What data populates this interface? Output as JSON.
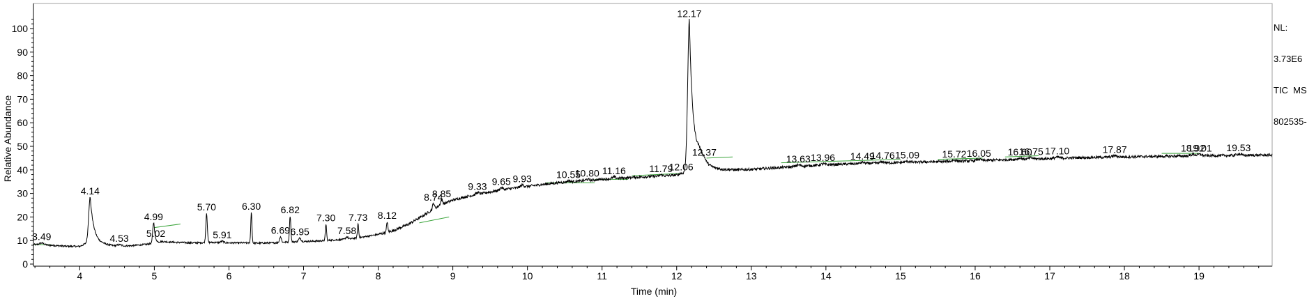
{
  "chart_data": {
    "type": "line",
    "title": "",
    "xlabel": "Time (min)",
    "ylabel": "Relative Abundance",
    "xlim": [
      3.38,
      19.98
    ],
    "ylim": [
      0,
      105
    ],
    "x_ticks": [
      4,
      5,
      6,
      7,
      8,
      9,
      10,
      11,
      12,
      13,
      14,
      15,
      16,
      17,
      18,
      19
    ],
    "y_ticks": [
      0,
      10,
      20,
      30,
      40,
      50,
      60,
      70,
      80,
      90,
      100
    ],
    "x_minor_tick_step": 0.2,
    "y_minor_tick_step": 2,
    "grid": false,
    "line_color": "#000000",
    "baseline_color": "#3aa43a",
    "header_lines": [
      "NL:",
      "3.73E6",
      "TIC  MS",
      "802535-"
    ],
    "trace_points": [
      [
        3.38,
        8.3
      ],
      [
        3.6,
        8.0
      ],
      [
        3.8,
        7.6
      ],
      [
        4.0,
        7.5
      ],
      [
        4.1,
        9
      ],
      [
        4.3,
        8.5
      ],
      [
        4.5,
        7.6
      ],
      [
        4.7,
        7.8
      ],
      [
        4.9,
        8.4
      ],
      [
        5.1,
        9.6
      ],
      [
        5.3,
        9.2
      ],
      [
        5.5,
        9.0
      ],
      [
        5.8,
        9.2
      ],
      [
        6.0,
        9.0
      ],
      [
        6.2,
        9.0
      ],
      [
        6.4,
        8.9
      ],
      [
        6.6,
        9.0
      ],
      [
        6.8,
        9.4
      ],
      [
        7.0,
        9.6
      ],
      [
        7.2,
        9.8
      ],
      [
        7.4,
        10.2
      ],
      [
        7.6,
        10.6
      ],
      [
        7.8,
        11.5
      ],
      [
        8.0,
        12.6
      ],
      [
        8.2,
        14.2
      ],
      [
        8.4,
        16.8
      ],
      [
        8.6,
        20.5
      ],
      [
        8.8,
        24.5
      ],
      [
        9.0,
        27.2
      ],
      [
        9.2,
        28.8
      ],
      [
        9.4,
        30.0
      ],
      [
        9.6,
        31.2
      ],
      [
        9.8,
        32.2
      ],
      [
        10.0,
        33.0
      ],
      [
        10.2,
        33.8
      ],
      [
        10.4,
        34.5
      ],
      [
        10.6,
        35.0
      ],
      [
        10.8,
        35.5
      ],
      [
        11.0,
        36.0
      ],
      [
        11.2,
        36.4
      ],
      [
        11.4,
        36.8
      ],
      [
        11.6,
        37.1
      ],
      [
        11.8,
        37.4
      ],
      [
        12.0,
        37.8
      ],
      [
        12.08,
        38.1
      ],
      [
        12.3,
        47.0
      ],
      [
        12.4,
        42.5
      ],
      [
        12.5,
        41.0
      ],
      [
        12.6,
        40.3
      ],
      [
        12.8,
        40.0
      ],
      [
        13.0,
        40.2
      ],
      [
        13.4,
        41.0
      ],
      [
        13.8,
        41.8
      ],
      [
        14.2,
        42.4
      ],
      [
        14.6,
        42.8
      ],
      [
        15.0,
        43.1
      ],
      [
        15.4,
        43.4
      ],
      [
        15.8,
        43.7
      ],
      [
        16.2,
        44.1
      ],
      [
        16.6,
        44.5
      ],
      [
        17.0,
        44.8
      ],
      [
        17.4,
        45.2
      ],
      [
        17.8,
        45.4
      ],
      [
        18.2,
        45.6
      ],
      [
        18.6,
        45.8
      ],
      [
        19.0,
        46.0
      ],
      [
        19.4,
        46.1
      ],
      [
        19.98,
        46.3
      ]
    ],
    "peaks": [
      {
        "rt": 3.49,
        "label": "3.49",
        "height": 0.8,
        "width": 0.03
      },
      {
        "rt": 4.14,
        "label": "4.14",
        "height": 19.5,
        "width": 0.03
      },
      {
        "rt": 4.53,
        "label": "4.53",
        "height": 0.6,
        "width": 0.03
      },
      {
        "rt": 4.99,
        "label": "4.99",
        "height": 8.5,
        "width": 0.012
      },
      {
        "rt": 5.02,
        "label": "5.02",
        "height": 1.2,
        "width": 0.015
      },
      {
        "rt": 5.7,
        "label": "5.70",
        "height": 12.5,
        "width": 0.01
      },
      {
        "rt": 5.91,
        "label": "5.91",
        "height": 0.6,
        "width": 0.02
      },
      {
        "rt": 6.3,
        "label": "6.30",
        "height": 13.0,
        "width": 0.008
      },
      {
        "rt": 6.69,
        "label": "6.69",
        "height": 2.5,
        "width": 0.012
      },
      {
        "rt": 6.82,
        "label": "6.82",
        "height": 11.0,
        "width": 0.009
      },
      {
        "rt": 6.95,
        "label": "6.95",
        "height": 1.5,
        "width": 0.015
      },
      {
        "rt": 7.3,
        "label": "7.30",
        "height": 7.0,
        "width": 0.008
      },
      {
        "rt": 7.58,
        "label": "7.58",
        "height": 1.0,
        "width": 0.015
      },
      {
        "rt": 7.73,
        "label": "7.73",
        "height": 6.0,
        "width": 0.008
      },
      {
        "rt": 8.12,
        "label": "8.12",
        "height": 4.5,
        "width": 0.008
      },
      {
        "rt": 8.74,
        "label": "8.74",
        "height": 2.5,
        "width": 0.012
      },
      {
        "rt": 8.85,
        "label": "8.85",
        "height": 2.0,
        "width": 0.015
      },
      {
        "rt": 9.33,
        "label": "9.33",
        "height": 0.8,
        "width": 0.02
      },
      {
        "rt": 9.65,
        "label": "9.65",
        "height": 1.0,
        "width": 0.02
      },
      {
        "rt": 9.93,
        "label": "9.93",
        "height": 0.9,
        "width": 0.02
      },
      {
        "rt": 10.55,
        "label": "10.55",
        "height": 0.5,
        "width": 0.02
      },
      {
        "rt": 10.8,
        "label": "10.80",
        "height": 0.5,
        "width": 0.02
      },
      {
        "rt": 11.16,
        "label": "11.16",
        "height": 0.6,
        "width": 0.02
      },
      {
        "rt": 11.79,
        "label": "11.79",
        "height": 0.5,
        "width": 0.02
      },
      {
        "rt": 12.06,
        "label": "12.06",
        "height": 0.6,
        "width": 0.02
      },
      {
        "rt": 12.17,
        "label": "12.17",
        "height": 62.0,
        "width": 0.025
      },
      {
        "rt": 12.37,
        "label": "12.37",
        "height": 1.0,
        "width": 0.03
      },
      {
        "rt": 13.63,
        "label": "13.63",
        "height": 0.6,
        "width": 0.03
      },
      {
        "rt": 13.96,
        "label": "13.96",
        "height": 0.5,
        "width": 0.03
      },
      {
        "rt": 14.49,
        "label": "14.49",
        "height": 0.5,
        "width": 0.03
      },
      {
        "rt": 14.76,
        "label": "14.76",
        "height": 0.5,
        "width": 0.03
      },
      {
        "rt": 15.09,
        "label": "15.09",
        "height": 0.5,
        "width": 0.03
      },
      {
        "rt": 15.72,
        "label": "15.72",
        "height": 0.5,
        "width": 0.03
      },
      {
        "rt": 16.05,
        "label": "16.05",
        "height": 0.5,
        "width": 0.03
      },
      {
        "rt": 16.6,
        "label": "16.60",
        "height": 0.5,
        "width": 0.03
      },
      {
        "rt": 16.75,
        "label": "16.75",
        "height": 0.5,
        "width": 0.03
      },
      {
        "rt": 17.1,
        "label": "17.10",
        "height": 0.5,
        "width": 0.03
      },
      {
        "rt": 17.87,
        "label": "17.87",
        "height": 0.6,
        "width": 0.03
      },
      {
        "rt": 18.92,
        "label": "18.92",
        "height": 0.6,
        "width": 0.03
      },
      {
        "rt": 19.01,
        "label": "19.01",
        "height": 0.6,
        "width": 0.03
      },
      {
        "rt": 19.53,
        "label": "19.53",
        "height": 0.6,
        "width": 0.03
      }
    ],
    "integration_baselines": [
      [
        3.38,
        8.3,
        3.62,
        8.2
      ],
      [
        5.0,
        15.5,
        5.35,
        17.0
      ],
      [
        8.55,
        17.5,
        8.95,
        20.0
      ],
      [
        10.25,
        34.5,
        10.9,
        34.5
      ],
      [
        10.9,
        36.0,
        11.35,
        36.0
      ],
      [
        11.4,
        37.5,
        12.05,
        38.5
      ],
      [
        12.4,
        45.0,
        12.75,
        45.5
      ],
      [
        13.4,
        43.0,
        13.9,
        43.5
      ],
      [
        13.9,
        43.5,
        14.5,
        44.0
      ],
      [
        14.5,
        44.0,
        15.0,
        44.5
      ],
      [
        15.5,
        44.5,
        16.1,
        45.0
      ],
      [
        16.4,
        45.5,
        16.85,
        46.0
      ],
      [
        18.5,
        47.0,
        19.0,
        47.0
      ]
    ]
  }
}
